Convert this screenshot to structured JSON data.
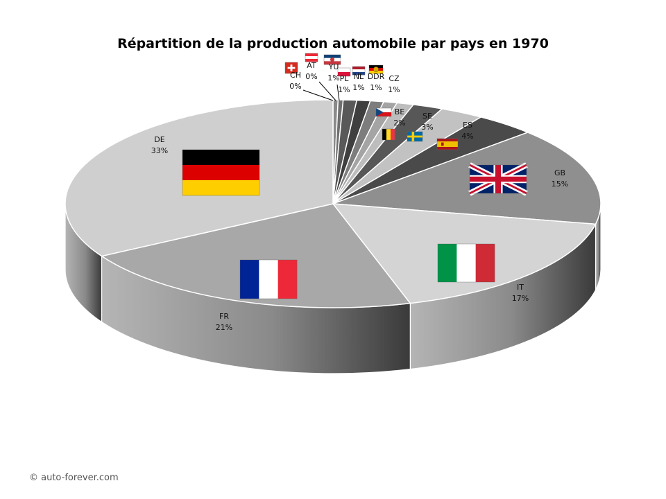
{
  "chart_data": {
    "type": "pie",
    "title": "Répartition de la production automobile par pays en 1970",
    "legend": "none",
    "slices": [
      {
        "label": "CH",
        "value": 0.3,
        "percent": "0%",
        "flag": "switzerland-flag-icon",
        "color": "#8a8a8a"
      },
      {
        "label": "AT",
        "value": 0.3,
        "percent": "0%",
        "flag": "austria-flag-icon",
        "color": "#707070"
      },
      {
        "label": "YU",
        "value": 0.8,
        "percent": "1%",
        "flag": "yugoslavia-flag-icon",
        "color": "#595959"
      },
      {
        "label": "PL",
        "value": 0.8,
        "percent": "1%",
        "flag": "poland-flag-icon",
        "color": "#3f3f3f"
      },
      {
        "label": "NL",
        "value": 0.8,
        "percent": "1%",
        "flag": "netherlands-flag-icon",
        "color": "#7d7d7d"
      },
      {
        "label": "DDR",
        "value": 0.8,
        "percent": "1%",
        "flag": "east-germany-flag-icon",
        "color": "#a4a4a4"
      },
      {
        "label": "CZ",
        "value": 1.0,
        "percent": "1%",
        "flag": "czechoslovakia-flag-icon",
        "color": "#bdbdbd"
      },
      {
        "label": "BE",
        "value": 1.8,
        "percent": "2%",
        "flag": "belgium-flag-icon",
        "color": "#575757"
      },
      {
        "label": "SE",
        "value": 2.6,
        "percent": "3%",
        "flag": "sweden-flag-icon",
        "color": "#c2c2c2"
      },
      {
        "label": "ES",
        "value": 3.6,
        "percent": "4%",
        "flag": "spain-flag-icon",
        "color": "#4a4a4a"
      },
      {
        "label": "GB",
        "value": 15.0,
        "percent": "15%",
        "flag": "united-kingdom-flag-icon",
        "color": "#8f8f8f"
      },
      {
        "label": "IT",
        "value": 17.0,
        "percent": "17%",
        "flag": "italy-flag-icon",
        "color": "#d4d4d4"
      },
      {
        "label": "FR",
        "value": 21.0,
        "percent": "21%",
        "flag": "france-flag-icon",
        "color": "#a8a8a8"
      },
      {
        "label": "DE",
        "value": 33.0,
        "percent": "33%",
        "flag": "germany-flag-icon",
        "color": "#cfcfcf"
      }
    ],
    "colors": {
      "germany": [
        "#000000",
        "#dd0000",
        "#ffce00"
      ],
      "france": [
        "#002395",
        "#ffffff",
        "#ed2939"
      ],
      "italy": [
        "#009246",
        "#ffffff",
        "#ce2b37"
      ],
      "uk_blue": "#012169",
      "uk_red": "#c8102e",
      "spain": [
        "#aa151b",
        "#f1bf00"
      ],
      "sweden": [
        "#006aa7",
        "#fecc00"
      ],
      "belgium": [
        "#000000",
        "#fdda24",
        "#ef3340"
      ],
      "switzerland": "#d52b1e"
    }
  },
  "footer": {
    "credit": "© auto-forever.com"
  }
}
